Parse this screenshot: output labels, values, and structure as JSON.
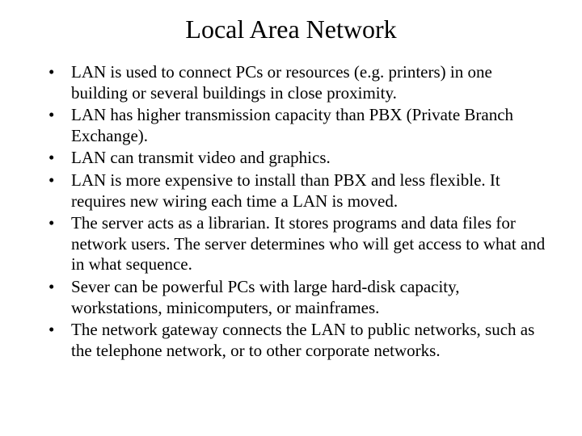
{
  "slide": {
    "title": "Local Area Network",
    "bullets": [
      "LAN is used to connect PCs  or resources (e.g. printers) in one building or several buildings in close proximity.",
      "LAN has higher transmission capacity than PBX (Private Branch Exchange).",
      "LAN can transmit video and graphics.",
      "LAN is more expensive to install than PBX and less flexible. It requires new wiring each time a LAN is moved.",
      "The server acts as a librarian. It stores programs and data files for network users. The server determines who will get access to what and in what sequence.",
      "Sever can be powerful PCs with large hard-disk capacity, workstations, minicomputers, or mainframes.",
      "The network gateway connects the LAN to public networks, such as the telephone network, or to other corporate networks."
    ]
  },
  "style": {
    "background_color": "#ffffff",
    "text_color": "#000000",
    "title_fontsize": 32,
    "body_fontsize": 21,
    "font_family": "Times New Roman"
  }
}
